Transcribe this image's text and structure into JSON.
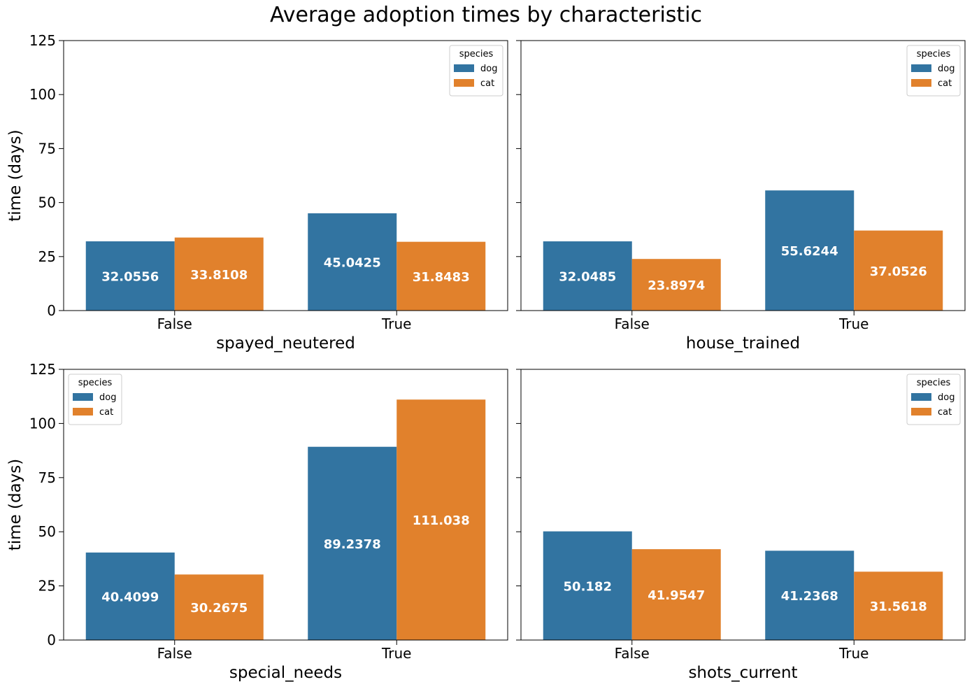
{
  "figure": {
    "title": "Average adoption times by characteristic"
  },
  "colors": {
    "dog": "#3274a1",
    "cat": "#e1812c"
  },
  "chart_data": [
    {
      "type": "bar",
      "xlabel": "spayed_neutered",
      "ylabel": "time (days)",
      "categories": [
        "False",
        "True"
      ],
      "ylim": [
        0,
        125
      ],
      "yticks": [
        "0",
        "25",
        "50",
        "75",
        "100",
        "125"
      ],
      "legend": {
        "title": "species",
        "position": "top-right"
      },
      "series": [
        {
          "name": "dog",
          "values": [
            32.0556,
            45.0425
          ],
          "labels": [
            "32.0556",
            "45.0425"
          ]
        },
        {
          "name": "cat",
          "values": [
            33.8108,
            31.8483
          ],
          "labels": [
            "33.8108",
            "31.8483"
          ]
        }
      ]
    },
    {
      "type": "bar",
      "xlabel": "house_trained",
      "ylabel": "",
      "categories": [
        "False",
        "True"
      ],
      "ylim": [
        0,
        125
      ],
      "yticks": [
        "",
        "",
        "",
        "",
        "",
        ""
      ],
      "legend": {
        "title": "species",
        "position": "top-right"
      },
      "series": [
        {
          "name": "dog",
          "values": [
            32.0485,
            55.6244
          ],
          "labels": [
            "32.0485",
            "55.6244"
          ]
        },
        {
          "name": "cat",
          "values": [
            23.8974,
            37.0526
          ],
          "labels": [
            "23.8974",
            "37.0526"
          ]
        }
      ]
    },
    {
      "type": "bar",
      "xlabel": "special_needs",
      "ylabel": "time (days)",
      "categories": [
        "False",
        "True"
      ],
      "ylim": [
        0,
        125
      ],
      "yticks": [
        "0",
        "25",
        "50",
        "75",
        "100",
        "125"
      ],
      "legend": {
        "title": "species",
        "position": "top-left"
      },
      "series": [
        {
          "name": "dog",
          "values": [
            40.4099,
            89.2378
          ],
          "labels": [
            "40.4099",
            "89.2378"
          ]
        },
        {
          "name": "cat",
          "values": [
            30.2675,
            111.038
          ],
          "labels": [
            "30.2675",
            "111.038"
          ]
        }
      ]
    },
    {
      "type": "bar",
      "xlabel": "shots_current",
      "ylabel": "",
      "categories": [
        "False",
        "True"
      ],
      "ylim": [
        0,
        125
      ],
      "yticks": [
        "",
        "",
        "",
        "",
        "",
        ""
      ],
      "legend": {
        "title": "species",
        "position": "top-right"
      },
      "series": [
        {
          "name": "dog",
          "values": [
            50.182,
            41.2368
          ],
          "labels": [
            "50.182",
            "41.2368"
          ]
        },
        {
          "name": "cat",
          "values": [
            41.9547,
            31.5618
          ],
          "labels": [
            "41.9547",
            "31.5618"
          ]
        }
      ]
    }
  ]
}
